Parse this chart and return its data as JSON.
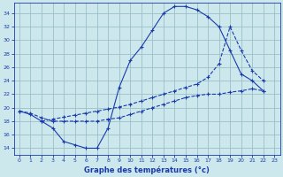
{
  "title": "Graphe des températures (°c)",
  "background_color": "#cce8ec",
  "grid_color": "#9bbfc8",
  "line_color": "#1a3aab",
  "xlim": [
    -0.5,
    23.5
  ],
  "ylim": [
    13.0,
    35.5
  ],
  "yticks": [
    14,
    16,
    18,
    20,
    22,
    24,
    26,
    28,
    30,
    32,
    34
  ],
  "xticks": [
    0,
    1,
    2,
    3,
    4,
    5,
    6,
    7,
    8,
    9,
    10,
    11,
    12,
    13,
    14,
    15,
    16,
    17,
    18,
    19,
    20,
    21,
    22,
    23
  ],
  "series1_x": [
    0,
    1,
    2,
    3,
    4,
    5,
    6,
    7,
    8,
    9,
    10,
    11,
    12,
    13,
    14,
    15,
    16,
    17,
    18,
    19,
    20,
    21,
    22
  ],
  "series1_y": [
    19.5,
    19.0,
    18.0,
    17.0,
    15.0,
    14.5,
    14.0,
    14.0,
    17.0,
    23.0,
    27.0,
    29.0,
    31.5,
    34.0,
    35.0,
    35.0,
    34.5,
    33.5,
    32.0,
    28.5,
    25.0,
    24.0,
    22.5
  ],
  "series2_x": [
    2,
    3,
    4,
    5,
    6,
    7,
    8,
    9,
    10,
    11,
    12,
    13,
    14,
    15,
    16,
    17,
    18,
    19,
    20,
    21,
    22
  ],
  "series2_y": [
    18.0,
    18.3,
    18.6,
    18.9,
    19.2,
    19.5,
    19.8,
    20.1,
    20.5,
    21.0,
    21.5,
    22.0,
    22.5,
    23.0,
    23.5,
    24.5,
    26.5,
    32.0,
    28.5,
    25.5,
    24.0
  ],
  "series3_x": [
    0,
    1,
    2,
    3,
    4,
    5,
    6,
    7,
    8,
    9,
    10,
    11,
    12,
    13,
    14,
    15,
    16,
    17,
    18,
    19,
    20,
    21,
    22
  ],
  "series3_y": [
    19.5,
    19.2,
    18.5,
    18.0,
    18.0,
    18.0,
    18.0,
    18.0,
    18.3,
    18.5,
    19.0,
    19.5,
    20.0,
    20.5,
    21.0,
    21.5,
    21.8,
    22.0,
    22.0,
    22.3,
    22.5,
    22.8,
    22.5
  ]
}
